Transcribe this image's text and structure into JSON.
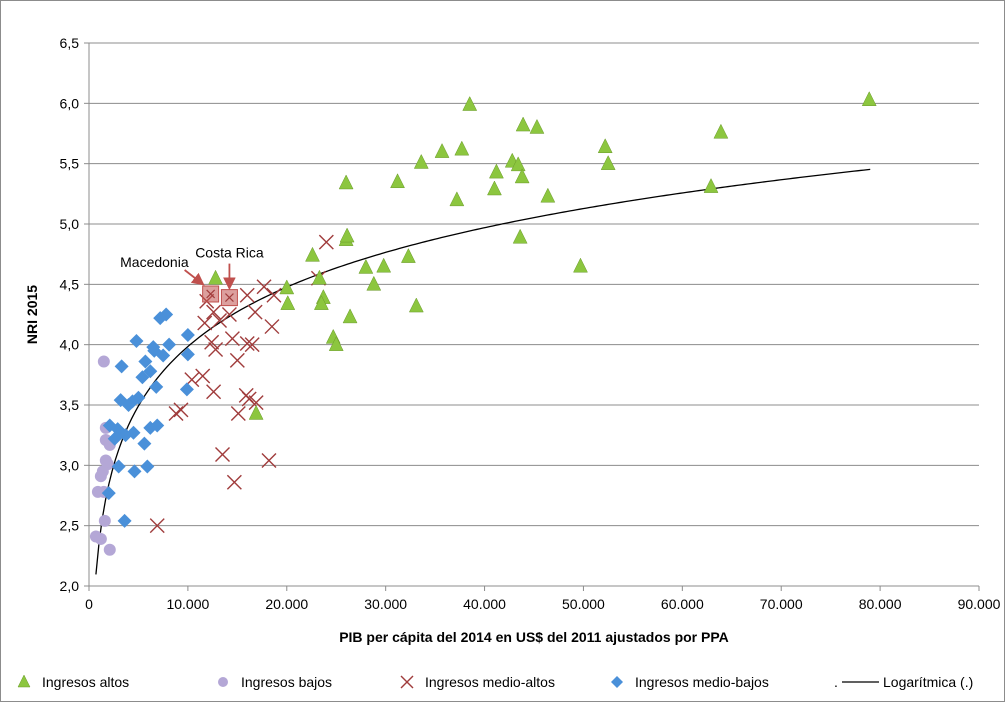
{
  "chart_data": {
    "type": "scatter",
    "title": "",
    "xlabel": "PIB per cápita del 2014 en US$ del 2011 ajustados por PPA",
    "ylabel": "NRI 2015",
    "xlim": [
      0,
      90000
    ],
    "ylim": [
      2.0,
      6.5
    ],
    "x_ticks": [
      0,
      10000,
      20000,
      30000,
      40000,
      50000,
      60000,
      70000,
      80000,
      90000
    ],
    "x_tick_labels": [
      "0",
      "10.000",
      "20.000",
      "30.000",
      "40.000",
      "50.000",
      "60.000",
      "70.000",
      "80.000",
      "90.000"
    ],
    "y_ticks": [
      2.0,
      2.5,
      3.0,
      3.5,
      4.0,
      4.5,
      5.0,
      5.5,
      6.0,
      6.5
    ],
    "y_tick_labels": [
      "2,0",
      "2,5",
      "3,0",
      "3,5",
      "4,0",
      "4,5",
      "5,0",
      "5,5",
      "6,0",
      "6,5"
    ],
    "grid": "horizontal",
    "legend_position": "bottom",
    "series": [
      {
        "name": "Ingresos altos",
        "marker": "triangle",
        "color": "#8cc63f",
        "points": [
          [
            78900,
            6.03
          ],
          [
            38500,
            5.99
          ],
          [
            63900,
            5.76
          ],
          [
            43900,
            5.82
          ],
          [
            45300,
            5.8
          ],
          [
            52200,
            5.64
          ],
          [
            37700,
            5.62
          ],
          [
            35700,
            5.6
          ],
          [
            52500,
            5.5
          ],
          [
            42800,
            5.52
          ],
          [
            43400,
            5.49
          ],
          [
            33600,
            5.51
          ],
          [
            41200,
            5.43
          ],
          [
            43800,
            5.39
          ],
          [
            31200,
            5.35
          ],
          [
            26000,
            5.34
          ],
          [
            41000,
            5.29
          ],
          [
            62900,
            5.31
          ],
          [
            46400,
            5.23
          ],
          [
            37200,
            5.2
          ],
          [
            26000,
            4.87
          ],
          [
            26100,
            4.9
          ],
          [
            43600,
            4.89
          ],
          [
            32300,
            4.73
          ],
          [
            22600,
            4.74
          ],
          [
            49700,
            4.65
          ],
          [
            28000,
            4.64
          ],
          [
            29800,
            4.65
          ],
          [
            23300,
            4.55
          ],
          [
            12800,
            4.55
          ],
          [
            28800,
            4.5
          ],
          [
            20000,
            4.47
          ],
          [
            23700,
            4.39
          ],
          [
            23500,
            4.34
          ],
          [
            20100,
            4.34
          ],
          [
            33100,
            4.32
          ],
          [
            26400,
            4.23
          ],
          [
            24700,
            4.06
          ],
          [
            25000,
            4.0
          ],
          [
            16900,
            3.43
          ]
        ]
      },
      {
        "name": "Ingresos bajos",
        "marker": "circle",
        "color": "#b4a7d6",
        "points": [
          [
            1500,
            3.86
          ],
          [
            1700,
            3.31
          ],
          [
            1700,
            3.21
          ],
          [
            2100,
            3.17
          ],
          [
            1700,
            3.04
          ],
          [
            1900,
            3.01
          ],
          [
            1400,
            2.95
          ],
          [
            1200,
            2.91
          ],
          [
            1500,
            2.78
          ],
          [
            900,
            2.78
          ],
          [
            1600,
            2.54
          ],
          [
            700,
            2.41
          ],
          [
            1200,
            2.39
          ],
          [
            2100,
            2.3
          ]
        ]
      },
      {
        "name": "Ingresos medio-altos",
        "marker": "x",
        "color": "#a03c3c",
        "points": [
          [
            24000,
            4.85
          ],
          [
            23200,
            4.55
          ],
          [
            17700,
            4.48
          ],
          [
            18700,
            4.41
          ],
          [
            16000,
            4.41
          ],
          [
            11900,
            4.36
          ],
          [
            12600,
            4.27
          ],
          [
            16800,
            4.27
          ],
          [
            14200,
            4.25
          ],
          [
            13200,
            4.2
          ],
          [
            11700,
            4.18
          ],
          [
            18500,
            4.15
          ],
          [
            14500,
            4.05
          ],
          [
            12400,
            4.02
          ],
          [
            16000,
            4.01
          ],
          [
            16500,
            4.0
          ],
          [
            12800,
            3.96
          ],
          [
            15000,
            3.87
          ],
          [
            11500,
            3.74
          ],
          [
            10400,
            3.71
          ],
          [
            15900,
            3.58
          ],
          [
            16200,
            3.55
          ],
          [
            16900,
            3.52
          ],
          [
            9300,
            3.46
          ],
          [
            8800,
            3.43
          ],
          [
            15100,
            3.43
          ],
          [
            12600,
            3.61
          ],
          [
            13500,
            3.09
          ],
          [
            18200,
            3.04
          ],
          [
            14700,
            2.86
          ],
          [
            6900,
            2.5
          ]
        ]
      },
      {
        "name": "Ingresos medio-bajos",
        "marker": "diamond",
        "color": "#4a90d9",
        "points": [
          [
            7800,
            4.25
          ],
          [
            7200,
            4.22
          ],
          [
            10000,
            4.08
          ],
          [
            4800,
            4.03
          ],
          [
            6500,
            3.98
          ],
          [
            8100,
            4.0
          ],
          [
            6600,
            3.95
          ],
          [
            7500,
            3.91
          ],
          [
            10000,
            3.92
          ],
          [
            3300,
            3.82
          ],
          [
            5700,
            3.86
          ],
          [
            6200,
            3.78
          ],
          [
            5400,
            3.73
          ],
          [
            6800,
            3.65
          ],
          [
            3200,
            3.54
          ],
          [
            4000,
            3.5
          ],
          [
            4400,
            3.53
          ],
          [
            5000,
            3.56
          ],
          [
            9900,
            3.63
          ],
          [
            6900,
            3.33
          ],
          [
            6200,
            3.31
          ],
          [
            2100,
            3.33
          ],
          [
            2900,
            3.3
          ],
          [
            3200,
            3.27
          ],
          [
            4500,
            3.27
          ],
          [
            3700,
            3.25
          ],
          [
            2600,
            3.22
          ],
          [
            5600,
            3.18
          ],
          [
            3000,
            2.99
          ],
          [
            5900,
            2.99
          ],
          [
            4600,
            2.95
          ],
          [
            2000,
            2.77
          ],
          [
            3600,
            2.54
          ]
        ]
      }
    ],
    "highlighted_points": [
      {
        "label": "Macedonia",
        "x": 12300,
        "y": 4.42,
        "color": "#c0504d"
      },
      {
        "label": "Costa Rica",
        "x": 14200,
        "y": 4.39,
        "color": "#c0504d"
      }
    ],
    "trendline": {
      "name": "Logarítmica (.)",
      "type": "logarithmic",
      "color": "#000000",
      "x_range": [
        700,
        79000
      ],
      "coefficients": {
        "a": 0.7103,
        "b": -2.5575
      }
    },
    "legend_prefix_symbol": "."
  }
}
